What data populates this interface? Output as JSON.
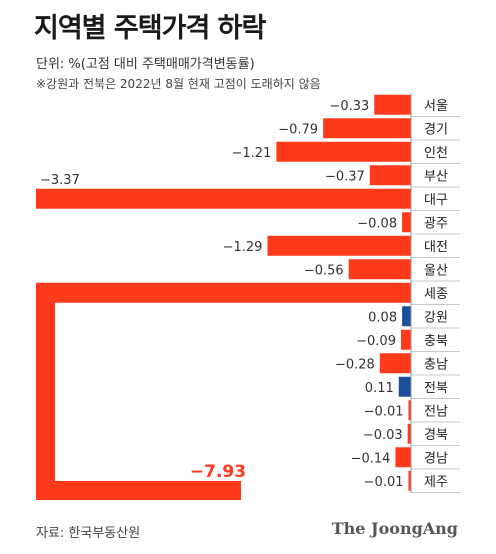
{
  "title": "지역별 주택가격 하락",
  "unit": "단위: %(고점 대비 주택매매가격변동률)",
  "note": "※강원과 전북은 2022년 8월 현재 고점이 도래하지 않음",
  "source": "자료: 한국부동산원",
  "brand": "The JoongAng",
  "colors": {
    "negative": "#ff3a1a",
    "positive": "#1b4f9c",
    "highlight_label": "#ff3a1a"
  },
  "chart_data": {
    "type": "bar",
    "orientation": "horizontal",
    "categories": [
      "서울",
      "경기",
      "인천",
      "부산",
      "대구",
      "광주",
      "대전",
      "울산",
      "세종",
      "강원",
      "충북",
      "충남",
      "전북",
      "전남",
      "경북",
      "경남",
      "제주"
    ],
    "values": [
      -0.33,
      -0.79,
      -1.21,
      -0.37,
      -3.37,
      -0.08,
      -1.29,
      -0.56,
      -7.93,
      0.08,
      -0.09,
      -0.28,
      0.11,
      -0.01,
      -0.03,
      -0.14,
      -0.01
    ],
    "labels": [
      "−0.33",
      "−0.79",
      "−1.21",
      "−0.37",
      "−3.37",
      "−0.08",
      "−1.29",
      "−0.56",
      "−7.93",
      "0.08",
      "−0.09",
      "−0.28",
      "0.11",
      "−0.01",
      "−0.03",
      "−0.14",
      "−0.01"
    ],
    "broken_axis_category": "세종"
  }
}
